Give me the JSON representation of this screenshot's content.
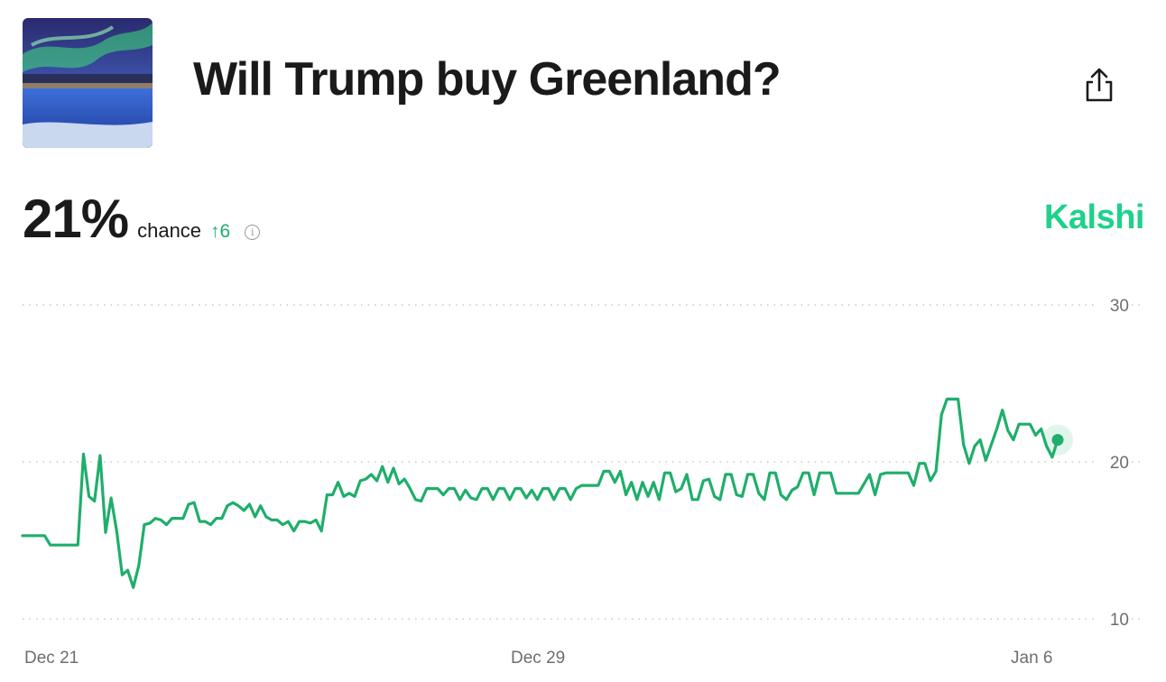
{
  "header": {
    "title": "Will Trump buy Greenland?"
  },
  "stat": {
    "value": "21%",
    "label": "chance",
    "delta": "↑6"
  },
  "brand": "Kalshi",
  "colors": {
    "line": "#1fae6b",
    "brand": "#1fd18a",
    "grid": "#c9c9c9"
  },
  "chart_data": {
    "type": "line",
    "x_ticks": [
      "Dec 21",
      "Dec 29",
      "Jan 6"
    ],
    "y_ticks": [
      10,
      20,
      30
    ],
    "ylim": [
      10,
      30
    ],
    "grid": true,
    "series": [
      {
        "values": [
          15.3,
          15.3,
          15.3,
          15.3,
          15.3,
          14.7,
          14.7,
          14.7,
          14.7,
          14.7,
          14.7,
          20.5,
          17.8,
          17.5,
          20.4,
          15.5,
          17.7,
          15.6,
          12.8,
          13.1,
          12.0,
          13.4,
          16.0,
          16.1,
          16.4,
          16.3,
          16.0,
          16.4,
          16.4,
          16.4,
          17.3,
          17.4,
          16.2,
          16.2,
          16.0,
          16.4,
          16.4,
          17.2,
          17.4,
          17.2,
          16.9,
          17.3,
          16.5,
          17.2,
          16.5,
          16.3,
          16.3,
          16.0,
          16.2,
          15.6,
          16.2,
          16.2,
          16.1,
          16.3,
          15.6,
          17.9,
          17.9,
          18.7,
          17.8,
          18.0,
          17.8,
          18.8,
          18.9,
          19.2,
          18.8,
          19.7,
          18.7,
          19.6,
          18.6,
          18.9,
          18.3,
          17.6,
          17.5,
          18.3,
          18.3,
          18.3,
          17.9,
          18.3,
          18.3,
          17.6,
          18.2,
          17.7,
          17.6,
          18.3,
          18.3,
          17.6,
          18.3,
          18.3,
          17.6,
          18.3,
          18.3,
          17.7,
          18.2,
          17.6,
          18.3,
          18.3,
          17.6,
          18.3,
          18.3,
          17.6,
          18.3,
          18.5,
          18.5,
          18.5,
          18.5,
          19.4,
          19.4,
          18.7,
          19.4,
          17.9,
          18.7,
          17.6,
          18.7,
          17.8,
          18.7,
          17.6,
          19.3,
          19.3,
          18.1,
          18.3,
          19.2,
          17.6,
          17.6,
          18.8,
          18.9,
          17.8,
          17.6,
          19.2,
          19.2,
          17.9,
          17.8,
          19.2,
          19.2,
          18.0,
          17.6,
          19.3,
          19.3,
          17.9,
          17.6,
          18.2,
          18.4,
          19.3,
          19.3,
          17.9,
          19.3,
          19.3,
          19.3,
          18.0,
          18.0,
          18.0,
          18.0,
          18.0,
          18.6,
          19.2,
          17.9,
          19.2,
          19.3,
          19.3,
          19.3,
          19.3,
          19.3,
          18.5,
          19.9,
          19.9,
          18.8,
          19.4,
          23.0,
          24.0,
          24.0,
          24.0,
          21.1,
          19.9,
          21.0,
          21.4,
          20.1,
          21.1,
          22.1,
          23.3,
          22.0,
          21.4,
          22.4,
          22.4,
          22.4,
          21.7,
          22.1,
          21.0,
          20.3,
          21.4
        ]
      }
    ]
  }
}
